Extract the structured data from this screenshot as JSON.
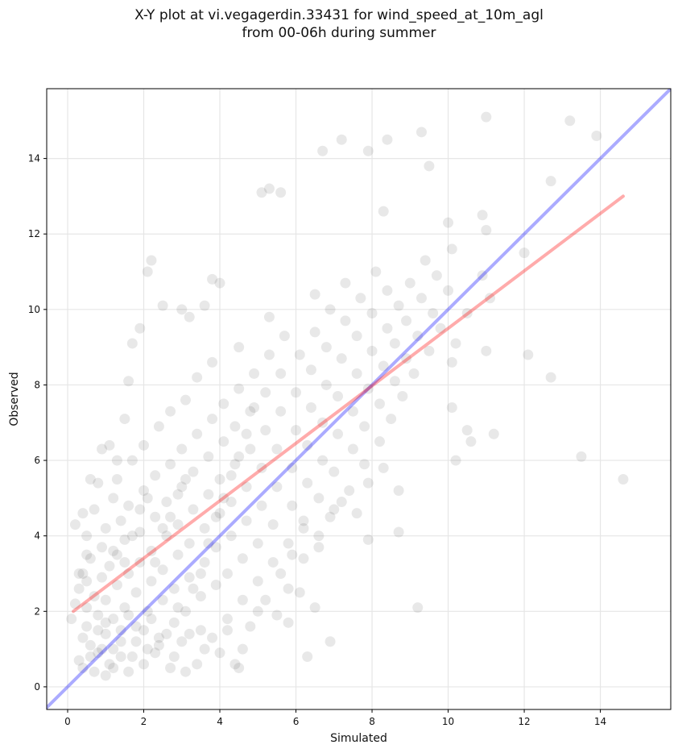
{
  "chart_data": {
    "type": "scatter",
    "title": "X-Y plot at vi.vegagerdin.33431 for wind_speed_at_10m_agl",
    "subtitle": "from 00-06h during summer",
    "xlabel": "Simulated",
    "ylabel": "Observed",
    "xlim": [
      -0.55,
      15.85
    ],
    "ylim": [
      -0.6,
      15.85
    ],
    "xticks": [
      0,
      2,
      4,
      6,
      8,
      10,
      12,
      14
    ],
    "yticks": [
      0,
      2,
      4,
      6,
      8,
      10,
      12,
      14
    ],
    "grid": true,
    "colors": {
      "points": "#000000",
      "identity_line": "#0000ff",
      "fit_line": "#ff0000"
    },
    "series": [
      {
        "values": [
          [
            0.3,
            0.7
          ],
          [
            0.4,
            1.3
          ],
          [
            0.5,
            2.1
          ],
          [
            0.3,
            2.6
          ],
          [
            0.4,
            3.0
          ],
          [
            0.5,
            1.6
          ],
          [
            0.6,
            1.1
          ],
          [
            0.7,
            2.4
          ],
          [
            0.6,
            3.4
          ],
          [
            0.5,
            4.0
          ],
          [
            0.7,
            4.7
          ],
          [
            0.8,
            0.9
          ],
          [
            0.8,
            1.9
          ],
          [
            0.9,
            2.9
          ],
          [
            0.9,
            3.7
          ],
          [
            1.0,
            1.4
          ],
          [
            1.0,
            2.3
          ],
          [
            1.1,
            3.2
          ],
          [
            1.0,
            4.2
          ],
          [
            1.2,
            5.0
          ],
          [
            1.1,
            0.6
          ],
          [
            1.2,
            1.8
          ],
          [
            1.3,
            2.7
          ],
          [
            1.2,
            3.6
          ],
          [
            1.4,
            4.4
          ],
          [
            1.3,
            5.5
          ],
          [
            1.4,
            1.2
          ],
          [
            1.5,
            2.1
          ],
          [
            1.6,
            3.0
          ],
          [
            1.5,
            3.9
          ],
          [
            1.6,
            4.8
          ],
          [
            1.7,
            6.0
          ],
          [
            1.7,
            0.8
          ],
          [
            1.8,
            1.6
          ],
          [
            1.8,
            2.5
          ],
          [
            1.9,
            3.3
          ],
          [
            1.9,
            4.1
          ],
          [
            2.0,
            5.2
          ],
          [
            2.0,
            6.4
          ],
          [
            2.1,
            1.0
          ],
          [
            2.1,
            2.0
          ],
          [
            2.2,
            2.8
          ],
          [
            2.2,
            3.6
          ],
          [
            2.3,
            4.5
          ],
          [
            2.3,
            5.6
          ],
          [
            2.4,
            6.9
          ],
          [
            2.4,
            1.3
          ],
          [
            2.5,
            2.3
          ],
          [
            2.5,
            3.1
          ],
          [
            2.6,
            4.0
          ],
          [
            2.6,
            4.9
          ],
          [
            2.7,
            5.9
          ],
          [
            2.7,
            7.3
          ],
          [
            2.8,
            1.7
          ],
          [
            2.8,
            2.6
          ],
          [
            2.9,
            3.5
          ],
          [
            2.9,
            4.3
          ],
          [
            3.0,
            5.3
          ],
          [
            3.0,
            6.3
          ],
          [
            3.1,
            7.6
          ],
          [
            3.1,
            2.0
          ],
          [
            3.2,
            2.9
          ],
          [
            3.2,
            3.8
          ],
          [
            3.3,
            4.7
          ],
          [
            3.3,
            5.7
          ],
          [
            3.4,
            6.7
          ],
          [
            3.4,
            8.2
          ],
          [
            3.5,
            1.5
          ],
          [
            3.5,
            2.4
          ],
          [
            3.6,
            3.3
          ],
          [
            3.6,
            4.2
          ],
          [
            3.7,
            5.1
          ],
          [
            3.7,
            6.1
          ],
          [
            3.8,
            7.1
          ],
          [
            3.8,
            8.6
          ],
          [
            3.9,
            2.7
          ],
          [
            3.9,
            3.7
          ],
          [
            4.0,
            4.6
          ],
          [
            4.0,
            5.5
          ],
          [
            4.1,
            6.5
          ],
          [
            4.1,
            7.5
          ],
          [
            4.2,
            1.8
          ],
          [
            4.2,
            3.0
          ],
          [
            4.3,
            4.0
          ],
          [
            4.3,
            4.9
          ],
          [
            4.4,
            5.9
          ],
          [
            4.4,
            6.9
          ],
          [
            4.5,
            7.9
          ],
          [
            4.5,
            9.0
          ],
          [
            4.6,
            2.3
          ],
          [
            4.6,
            3.4
          ],
          [
            4.7,
            4.4
          ],
          [
            4.7,
            5.3
          ],
          [
            4.8,
            6.3
          ],
          [
            4.8,
            7.3
          ],
          [
            4.9,
            8.3
          ],
          [
            5.0,
            2.8
          ],
          [
            5.0,
            3.8
          ],
          [
            5.1,
            4.8
          ],
          [
            5.1,
            5.8
          ],
          [
            5.2,
            6.8
          ],
          [
            5.2,
            7.8
          ],
          [
            5.3,
            8.8
          ],
          [
            5.3,
            9.8
          ],
          [
            5.4,
            3.3
          ],
          [
            5.4,
            4.3
          ],
          [
            5.5,
            5.3
          ],
          [
            5.5,
            6.3
          ],
          [
            5.6,
            7.3
          ],
          [
            5.6,
            8.3
          ],
          [
            5.7,
            9.3
          ],
          [
            5.8,
            2.6
          ],
          [
            5.8,
            3.8
          ],
          [
            5.9,
            4.8
          ],
          [
            5.9,
            5.8
          ],
          [
            6.0,
            6.8
          ],
          [
            6.0,
            7.8
          ],
          [
            6.1,
            8.8
          ],
          [
            6.2,
            3.4
          ],
          [
            6.2,
            4.4
          ],
          [
            6.3,
            5.4
          ],
          [
            6.3,
            6.4
          ],
          [
            6.4,
            7.4
          ],
          [
            6.4,
            8.4
          ],
          [
            6.5,
            9.4
          ],
          [
            6.5,
            10.4
          ],
          [
            6.6,
            4.0
          ],
          [
            6.6,
            5.0
          ],
          [
            6.7,
            6.0
          ],
          [
            6.7,
            7.0
          ],
          [
            6.8,
            8.0
          ],
          [
            6.8,
            9.0
          ],
          [
            6.9,
            10.0
          ],
          [
            7.0,
            4.7
          ],
          [
            7.0,
            5.7
          ],
          [
            7.1,
            6.7
          ],
          [
            7.1,
            7.7
          ],
          [
            7.2,
            8.7
          ],
          [
            7.3,
            9.7
          ],
          [
            7.3,
            10.7
          ],
          [
            7.4,
            5.2
          ],
          [
            7.5,
            6.3
          ],
          [
            7.5,
            7.3
          ],
          [
            7.6,
            8.3
          ],
          [
            7.6,
            9.3
          ],
          [
            7.7,
            10.3
          ],
          [
            7.8,
            5.9
          ],
          [
            7.8,
            6.9
          ],
          [
            7.9,
            7.9
          ],
          [
            8.0,
            8.9
          ],
          [
            8.0,
            9.9
          ],
          [
            8.1,
            11.0
          ],
          [
            8.2,
            6.5
          ],
          [
            8.2,
            7.5
          ],
          [
            8.3,
            8.5
          ],
          [
            8.4,
            9.5
          ],
          [
            8.4,
            10.5
          ],
          [
            8.5,
            7.1
          ],
          [
            8.6,
            8.1
          ],
          [
            8.6,
            9.1
          ],
          [
            8.7,
            10.1
          ],
          [
            8.8,
            7.7
          ],
          [
            8.9,
            8.7
          ],
          [
            8.9,
            9.7
          ],
          [
            9.0,
            10.7
          ],
          [
            9.1,
            8.3
          ],
          [
            9.2,
            9.3
          ],
          [
            9.3,
            10.3
          ],
          [
            9.4,
            11.3
          ],
          [
            9.5,
            8.9
          ],
          [
            9.6,
            9.9
          ],
          [
            9.7,
            10.9
          ],
          [
            9.8,
            9.5
          ],
          [
            10.0,
            10.5
          ],
          [
            10.1,
            8.6
          ],
          [
            10.2,
            9.1
          ],
          [
            10.5,
            9.9
          ],
          [
            10.9,
            10.9
          ],
          [
            11.1,
            10.3
          ],
          [
            0.4,
            0.5
          ],
          [
            0.6,
            0.8
          ],
          [
            0.8,
            1.5
          ],
          [
            1.0,
            1.7
          ],
          [
            1.2,
            1.0
          ],
          [
            1.4,
            1.5
          ],
          [
            1.6,
            1.9
          ],
          [
            1.8,
            1.2
          ],
          [
            2.0,
            1.5
          ],
          [
            2.2,
            1.8
          ],
          [
            2.4,
            1.1
          ],
          [
            2.6,
            1.4
          ],
          [
            2.8,
            0.8
          ],
          [
            3.0,
            1.2
          ],
          [
            3.2,
            1.4
          ],
          [
            3.4,
            0.6
          ],
          [
            3.6,
            1.0
          ],
          [
            3.8,
            1.3
          ],
          [
            4.0,
            0.9
          ],
          [
            4.2,
            1.5
          ],
          [
            4.4,
            0.6
          ],
          [
            4.6,
            1.0
          ],
          [
            4.8,
            1.6
          ],
          [
            5.0,
            2.0
          ],
          [
            5.2,
            2.3
          ],
          [
            5.5,
            1.9
          ],
          [
            5.8,
            1.7
          ],
          [
            6.1,
            2.5
          ],
          [
            6.5,
            2.1
          ],
          [
            6.9,
            1.2
          ],
          [
            1.1,
            6.4
          ],
          [
            1.3,
            6.0
          ],
          [
            1.5,
            7.1
          ],
          [
            1.6,
            8.1
          ],
          [
            1.7,
            9.1
          ],
          [
            1.9,
            9.5
          ],
          [
            2.1,
            11.0
          ],
          [
            2.2,
            11.3
          ],
          [
            2.5,
            10.1
          ],
          [
            3.0,
            10.0
          ],
          [
            3.2,
            9.8
          ],
          [
            3.6,
            10.1
          ],
          [
            3.8,
            10.8
          ],
          [
            4.0,
            10.7
          ],
          [
            5.1,
            13.1
          ],
          [
            5.3,
            13.2
          ],
          [
            5.6,
            13.1
          ],
          [
            6.7,
            14.2
          ],
          [
            7.2,
            14.5
          ],
          [
            7.9,
            14.2
          ],
          [
            8.3,
            12.6
          ],
          [
            8.4,
            14.5
          ],
          [
            9.3,
            14.7
          ],
          [
            9.5,
            13.8
          ],
          [
            10.0,
            12.3
          ],
          [
            10.1,
            11.6
          ],
          [
            10.9,
            12.5
          ],
          [
            11.0,
            12.1
          ],
          [
            11.0,
            15.1
          ],
          [
            12.0,
            11.5
          ],
          [
            12.1,
            8.8
          ],
          [
            12.7,
            8.2
          ],
          [
            12.7,
            13.4
          ],
          [
            13.2,
            15.0
          ],
          [
            13.5,
            6.1
          ],
          [
            13.9,
            14.6
          ],
          [
            14.6,
            5.5
          ],
          [
            11.0,
            8.9
          ],
          [
            11.2,
            6.7
          ],
          [
            10.6,
            6.5
          ],
          [
            10.5,
            6.8
          ],
          [
            10.2,
            6.0
          ],
          [
            10.1,
            7.4
          ],
          [
            9.2,
            2.1
          ],
          [
            8.7,
            4.1
          ],
          [
            7.9,
            3.9
          ],
          [
            6.3,
            0.8
          ],
          [
            4.5,
            0.5
          ],
          [
            0.1,
            1.8
          ],
          [
            0.2,
            2.2
          ],
          [
            0.3,
            3.0
          ],
          [
            0.5,
            3.5
          ],
          [
            0.4,
            4.6
          ],
          [
            0.6,
            5.5
          ],
          [
            0.8,
            5.4
          ],
          [
            0.9,
            6.3
          ],
          [
            0.2,
            4.3
          ],
          [
            0.5,
            2.8
          ],
          [
            1.0,
            0.3
          ],
          [
            1.2,
            0.5
          ],
          [
            1.4,
            0.8
          ],
          [
            1.6,
            0.4
          ],
          [
            2.0,
            0.6
          ],
          [
            2.3,
            0.9
          ],
          [
            2.7,
            0.5
          ],
          [
            3.1,
            0.4
          ],
          [
            0.7,
            0.4
          ],
          [
            0.9,
            1.0
          ],
          [
            2.9,
            2.1
          ],
          [
            3.3,
            2.6
          ],
          [
            3.5,
            3.0
          ],
          [
            3.7,
            3.8
          ],
          [
            3.9,
            4.5
          ],
          [
            4.1,
            5.0
          ],
          [
            4.3,
            5.6
          ],
          [
            4.5,
            6.1
          ],
          [
            4.7,
            6.7
          ],
          [
            4.9,
            7.4
          ],
          [
            2.3,
            3.3
          ],
          [
            2.5,
            4.2
          ],
          [
            2.7,
            4.5
          ],
          [
            2.9,
            5.1
          ],
          [
            3.1,
            5.5
          ],
          [
            1.3,
            3.5
          ],
          [
            1.5,
            3.3
          ],
          [
            1.7,
            4.0
          ],
          [
            1.9,
            4.7
          ],
          [
            2.1,
            5.0
          ],
          [
            5.6,
            3.0
          ],
          [
            5.9,
            3.5
          ],
          [
            6.2,
            4.2
          ],
          [
            6.6,
            3.7
          ],
          [
            6.9,
            4.5
          ],
          [
            7.2,
            4.9
          ],
          [
            7.6,
            4.6
          ],
          [
            7.9,
            5.4
          ],
          [
            8.3,
            5.8
          ],
          [
            8.7,
            5.2
          ]
        ]
      }
    ],
    "lines": [
      {
        "values": [
          [
            -0.6,
            -0.6
          ],
          [
            15.85,
            15.85
          ]
        ]
      },
      {
        "values": [
          [
            0.15,
            2.0
          ],
          [
            14.6,
            13.0
          ]
        ]
      }
    ]
  }
}
